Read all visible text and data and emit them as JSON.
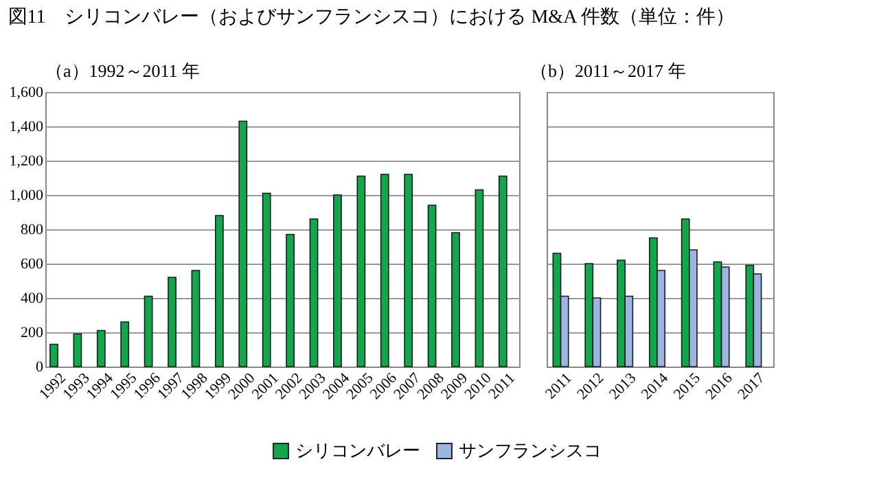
{
  "chart_data": [
    {
      "type": "bar",
      "title": "図11　シリコンバレー（およびサンフランシスコ）における M&A 件数（単位：件）",
      "subtitle": "（a）1992～2011 年",
      "categories": [
        "1992",
        "1993",
        "1994",
        "1995",
        "1996",
        "1997",
        "1998",
        "1999",
        "2000",
        "2001",
        "2002",
        "2003",
        "2004",
        "2005",
        "2006",
        "2007",
        "2008",
        "2009",
        "2010",
        "2011"
      ],
      "series": [
        {
          "color": "#0fa84a",
          "values": [
            130,
            190,
            210,
            260,
            410,
            520,
            560,
            880,
            1430,
            1010,
            770,
            860,
            1000,
            1110,
            1120,
            1120,
            940,
            780,
            1030,
            1110
          ]
        }
      ],
      "ylim": [
        0,
        1600
      ],
      "yticks": [
        0,
        200,
        400,
        600,
        800,
        {
          "value": 1000,
          "label": "1,000"
        },
        {
          "value": 1200,
          "label": "1,200"
        },
        {
          "value": 1400,
          "label": "1,400"
        },
        {
          "value": 1600,
          "label": "1,600"
        }
      ],
      "grid": "y"
    },
    {
      "type": "bar",
      "subtitle": "（b）2011～2017 年",
      "categories": [
        "2011",
        "2012",
        "2013",
        "2014",
        "2015",
        "2016",
        "2017"
      ],
      "series": [
        {
          "name": "シリコンバレー",
          "color": "#0fa84a",
          "values": [
            660,
            600,
            620,
            750,
            860,
            610,
            590
          ]
        },
        {
          "name": "サンフランシスコ",
          "color": "#9db5e3",
          "values": [
            410,
            400,
            410,
            560,
            680,
            580,
            540
          ]
        }
      ],
      "ylim": [
        0,
        1600
      ],
      "yticks": [
        0,
        200,
        400,
        600,
        800,
        1000,
        1200,
        1400,
        1600
      ],
      "grid": "y",
      "tick_labels": "x",
      "legend": "bottom"
    }
  ]
}
